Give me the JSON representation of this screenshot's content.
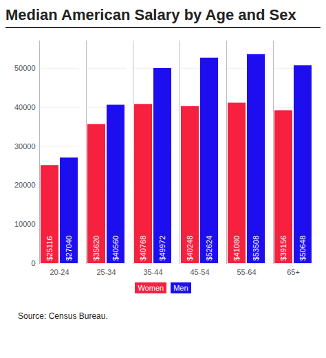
{
  "chart_data": {
    "type": "bar",
    "title": "Median American Salary by Age and Sex",
    "caption": "Source: Census Bureau.",
    "categories": [
      "20-24",
      "25-34",
      "35-44",
      "45-54",
      "55-64",
      "65+"
    ],
    "series": [
      {
        "name": "Women",
        "color": "#f5213f",
        "values": [
          25116,
          35620,
          40768,
          40248,
          41080,
          39156
        ],
        "value_labels": [
          "$25116",
          "$35620",
          "$40768",
          "$40248",
          "$41080",
          "$39156"
        ]
      },
      {
        "name": "Men",
        "color": "#1d0ef0",
        "values": [
          27040,
          40560,
          49972,
          52624,
          53508,
          50648
        ],
        "value_labels": [
          "$27040",
          "$40560",
          "$49972",
          "$52624",
          "$53508",
          "$50648"
        ]
      }
    ],
    "ylim": [
      0,
      57000
    ],
    "yticks": [
      0,
      10000,
      20000,
      30000,
      40000,
      50000
    ],
    "grid": true,
    "data_labels": true,
    "legend": "bottom"
  }
}
